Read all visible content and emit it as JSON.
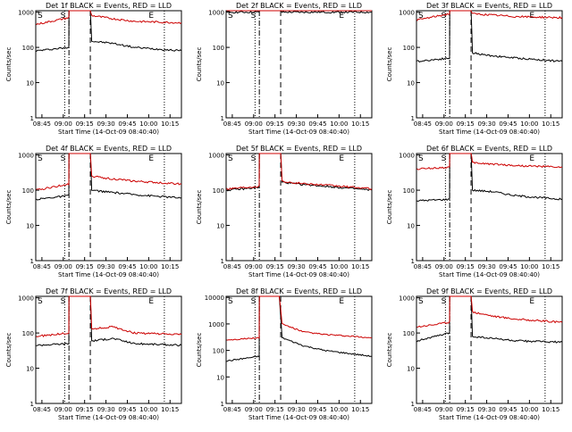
{
  "ylabel": "Counts/sec",
  "xlabel": "Start Time (14-Oct-09 08:40:40)",
  "x_ticks": [
    "08:45",
    "09:00",
    "09:15",
    "09:30",
    "09:45",
    "10:00",
    "10:15"
  ],
  "x_tick_minutes": [
    45,
    60,
    75,
    90,
    105,
    120,
    135
  ],
  "xlim_minutes": [
    40.67,
    143
  ],
  "y_ticks": [
    "1",
    "10",
    "100",
    "1000"
  ],
  "y_tick_values": [
    1,
    10,
    100,
    1000
  ],
  "event_markers": {
    "s_label": "S",
    "e_label": "E",
    "s_minutes": 53,
    "e_minutes": 120,
    "dotted_minutes": [
      61,
      131
    ],
    "dashdot_minutes": 64,
    "dashed_minutes": 79
  },
  "colors": {
    "events": "#000000",
    "lld": "#cc0000",
    "axes": "#000000"
  },
  "chart_data": [
    {
      "type": "line",
      "title": "Det 1f BLACK = Events, RED = LLD",
      "ylim": [
        1,
        1100
      ],
      "series": [
        {
          "name": "Events",
          "color": "black",
          "x": [
            41,
            63.9,
            64,
            79,
            80,
            95,
            110,
            143
          ],
          "values": [
            80,
            100,
            1100,
            1100,
            150,
            130,
            100,
            80
          ]
        },
        {
          "name": "LLD",
          "color": "red",
          "x": [
            41,
            63.9,
            64,
            79,
            80,
            95,
            110,
            143
          ],
          "values": [
            450,
            700,
            1100,
            1100,
            800,
            650,
            550,
            500
          ]
        }
      ]
    },
    {
      "type": "line",
      "title": "Det 2f BLACK = Events, RED = LLD",
      "ylim": [
        1,
        1100
      ],
      "series": [
        {
          "name": "Events",
          "color": "black",
          "x": [
            41,
            63.9,
            64,
            79,
            80,
            143
          ],
          "values": [
            1000,
            1000,
            1100,
            1100,
            1000,
            1000
          ]
        },
        {
          "name": "LLD",
          "color": "red",
          "x": [
            41,
            63.9,
            64,
            79,
            80,
            143
          ],
          "values": [
            1100,
            1100,
            1100,
            1100,
            1100,
            1100
          ]
        }
      ]
    },
    {
      "type": "line",
      "title": "Det 3f BLACK = Events, RED = LLD",
      "ylim": [
        1,
        1100
      ],
      "series": [
        {
          "name": "Events",
          "color": "black",
          "x": [
            41,
            63.9,
            64,
            79,
            80,
            90,
            110,
            143
          ],
          "values": [
            40,
            50,
            1100,
            1100,
            70,
            60,
            50,
            40
          ]
        },
        {
          "name": "LLD",
          "color": "red",
          "x": [
            41,
            63.9,
            64,
            79,
            80,
            90,
            110,
            143
          ],
          "values": [
            600,
            900,
            1100,
            1100,
            900,
            850,
            750,
            700
          ]
        }
      ]
    },
    {
      "type": "line",
      "title": "Det 4f BLACK = Events, RED = LLD",
      "ylim": [
        1,
        1100
      ],
      "series": [
        {
          "name": "Events",
          "color": "black",
          "x": [
            41,
            63.9,
            64,
            79,
            80,
            90,
            110,
            143
          ],
          "values": [
            55,
            70,
            1100,
            1100,
            100,
            90,
            75,
            60
          ]
        },
        {
          "name": "LLD",
          "color": "red",
          "x": [
            41,
            63.9,
            64,
            79,
            80,
            90,
            110,
            143
          ],
          "values": [
            100,
            150,
            1100,
            1100,
            250,
            220,
            180,
            150
          ]
        }
      ]
    },
    {
      "type": "line",
      "title": "Det 5f BLACK = Events, RED = LLD",
      "ylim": [
        1,
        1100
      ],
      "series": [
        {
          "name": "Events",
          "color": "black",
          "x": [
            41,
            63.9,
            64,
            79,
            80,
            90,
            110,
            143
          ],
          "values": [
            100,
            120,
            1100,
            1100,
            170,
            150,
            130,
            100
          ]
        },
        {
          "name": "LLD",
          "color": "red",
          "x": [
            41,
            63.9,
            64,
            79,
            80,
            90,
            110,
            143
          ],
          "values": [
            110,
            130,
            1100,
            1100,
            180,
            160,
            140,
            110
          ]
        }
      ]
    },
    {
      "type": "line",
      "title": "Det 6f BLACK = Events, RED = LLD",
      "ylim": [
        1,
        1100
      ],
      "series": [
        {
          "name": "Events",
          "color": "black",
          "x": [
            41,
            63.9,
            64,
            79,
            80,
            95,
            110,
            143
          ],
          "values": [
            50,
            55,
            1100,
            1100,
            100,
            90,
            70,
            55
          ]
        },
        {
          "name": "LLD",
          "color": "red",
          "x": [
            41,
            63.9,
            64,
            79,
            80,
            95,
            110,
            143
          ],
          "values": [
            400,
            450,
            1100,
            1100,
            600,
            550,
            500,
            450
          ]
        }
      ]
    },
    {
      "type": "line",
      "title": "Det 7f BLACK = Events, RED = LLD",
      "ylim": [
        1,
        1100
      ],
      "series": [
        {
          "name": "Events",
          "color": "black",
          "x": [
            41,
            63.9,
            64,
            79,
            80,
            95,
            110,
            143
          ],
          "values": [
            45,
            50,
            1100,
            1100,
            60,
            70,
            50,
            45
          ]
        },
        {
          "name": "LLD",
          "color": "red",
          "x": [
            41,
            63.9,
            64,
            79,
            80,
            95,
            110,
            143
          ],
          "values": [
            80,
            100,
            1100,
            1100,
            130,
            150,
            100,
            90
          ]
        }
      ]
    },
    {
      "type": "line",
      "title": "Det 8f BLACK = Events, RED = LLD",
      "ylim": [
        1,
        11000
      ],
      "series": [
        {
          "name": "Events",
          "color": "black",
          "x": [
            41,
            63.9,
            64,
            78,
            80,
            95,
            110,
            143
          ],
          "values": [
            40,
            60,
            11000,
            11000,
            300,
            150,
            100,
            60
          ]
        },
        {
          "name": "LLD",
          "color": "red",
          "x": [
            41,
            63.9,
            64,
            78,
            80,
            95,
            110,
            143
          ],
          "values": [
            250,
            300,
            11000,
            11000,
            1000,
            500,
            400,
            300
          ]
        }
      ]
    },
    {
      "type": "line",
      "title": "Det 9f BLACK = Events, RED = LLD",
      "ylim": [
        1,
        1100
      ],
      "series": [
        {
          "name": "Events",
          "color": "black",
          "x": [
            41,
            63.9,
            64,
            79,
            80,
            95,
            110,
            143
          ],
          "values": [
            60,
            100,
            1100,
            1100,
            80,
            70,
            60,
            55
          ]
        },
        {
          "name": "LLD",
          "color": "red",
          "x": [
            41,
            63.9,
            64,
            79,
            80,
            95,
            110,
            143
          ],
          "values": [
            150,
            200,
            1100,
            1100,
            400,
            300,
            250,
            200
          ]
        }
      ]
    }
  ]
}
